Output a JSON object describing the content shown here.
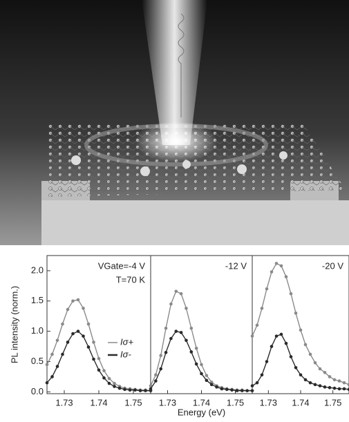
{
  "chart_data": [
    {
      "type": "scatter",
      "ylabel": "PL intensity (norm.)",
      "annotations": [
        "VGate=-4 V",
        "T=70 K"
      ],
      "legend": "right",
      "xlim": [
        1.725,
        1.755
      ],
      "xticks": [
        1.73,
        1.74,
        1.75
      ],
      "ylim": [
        -0.03,
        2.25
      ],
      "yticks": [
        {
          "value": 0,
          "label": "0.0"
        },
        {
          "value": 0.5,
          "label": "0.5"
        },
        {
          "value": 1,
          "label": "1.0"
        },
        {
          "value": 1.5,
          "label": "1.5"
        },
        {
          "value": 2,
          "label": "2.0"
        }
      ],
      "x": [
        1.725,
        1.7265,
        1.728,
        1.7295,
        1.731,
        1.7325,
        1.734,
        1.7355,
        1.737,
        1.7385,
        1.74,
        1.7415,
        1.743,
        1.7445,
        1.746,
        1.7475,
        1.749,
        1.7505,
        1.752,
        1.7535,
        1.755
      ],
      "series": [
        {
          "name": "Iσ+",
          "color": "#8a8a8a",
          "values": [
            0.45,
            0.62,
            0.85,
            1.12,
            1.36,
            1.5,
            1.52,
            1.38,
            1.12,
            0.82,
            0.55,
            0.35,
            0.22,
            0.14,
            0.09,
            0.06,
            0.05,
            0.04,
            0.03,
            0.03,
            0.02
          ]
        },
        {
          "name": "Iσ-",
          "color": "#2a2a2a",
          "values": [
            0.15,
            0.25,
            0.42,
            0.62,
            0.82,
            0.96,
            1.0,
            0.92,
            0.74,
            0.54,
            0.36,
            0.23,
            0.14,
            0.09,
            0.06,
            0.04,
            0.03,
            0.03,
            0.02,
            0.02,
            0.02
          ]
        }
      ]
    },
    {
      "type": "scatter",
      "xlabel": "Energy (eV)",
      "annotations": [
        "-12 V"
      ],
      "xlim": [
        1.725,
        1.755
      ],
      "xticks": [
        1.73,
        1.74,
        1.75
      ],
      "ylim": [
        -0.03,
        2.25
      ],
      "x": [
        1.725,
        1.7265,
        1.728,
        1.7295,
        1.731,
        1.7325,
        1.734,
        1.7355,
        1.737,
        1.7385,
        1.74,
        1.7415,
        1.743,
        1.7445,
        1.746,
        1.7475,
        1.749,
        1.7505,
        1.752,
        1.7535,
        1.755
      ],
      "series": [
        {
          "color": "#8a8a8a",
          "values": [
            0.1,
            0.28,
            0.6,
            1.05,
            1.45,
            1.66,
            1.62,
            1.38,
            1.05,
            0.72,
            0.45,
            0.27,
            0.16,
            0.1,
            0.07,
            0.05,
            0.04,
            0.03,
            0.03,
            0.02,
            0.02
          ]
        },
        {
          "color": "#2a2a2a",
          "values": [
            0.05,
            0.18,
            0.38,
            0.65,
            0.88,
            1.0,
            0.98,
            0.85,
            0.66,
            0.46,
            0.3,
            0.19,
            0.12,
            0.08,
            0.05,
            0.04,
            0.03,
            0.02,
            0.02,
            0.02,
            0.02
          ]
        }
      ]
    },
    {
      "type": "scatter",
      "annotations": [
        "-20 V"
      ],
      "xlim": [
        1.725,
        1.755
      ],
      "xticks": [
        1.73,
        1.74,
        1.75
      ],
      "ylim": [
        -0.03,
        2.25
      ],
      "x": [
        1.725,
        1.7265,
        1.728,
        1.7295,
        1.731,
        1.7325,
        1.734,
        1.7355,
        1.737,
        1.7385,
        1.74,
        1.7415,
        1.743,
        1.7445,
        1.746,
        1.7475,
        1.749,
        1.7505,
        1.752,
        1.7535,
        1.755
      ],
      "series": [
        {
          "color": "#8a8a8a",
          "values": [
            0.92,
            1.1,
            1.38,
            1.7,
            1.98,
            2.12,
            2.08,
            1.9,
            1.62,
            1.3,
            1.02,
            0.78,
            0.62,
            0.48,
            0.38,
            0.32,
            0.25,
            0.2,
            0.18,
            0.15,
            0.12
          ]
        },
        {
          "color": "#2a2a2a",
          "values": [
            0.1,
            0.15,
            0.28,
            0.5,
            0.75,
            0.92,
            0.95,
            0.8,
            0.58,
            0.4,
            0.28,
            0.2,
            0.15,
            0.12,
            0.1,
            0.08,
            0.07,
            0.06,
            0.05,
            0.05,
            0.04
          ]
        }
      ]
    }
  ]
}
